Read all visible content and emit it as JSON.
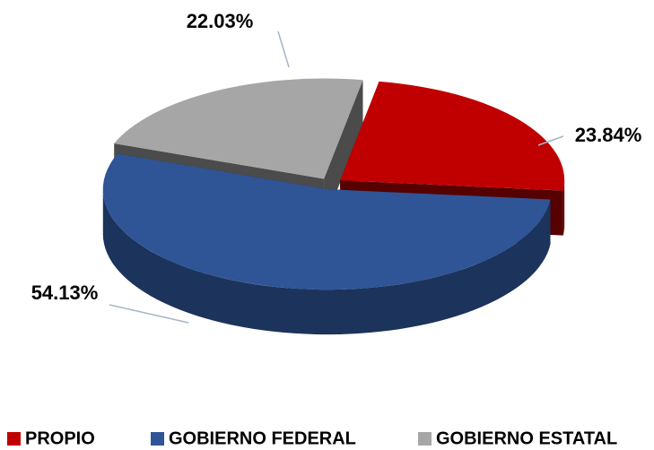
{
  "chart_data": {
    "type": "pie",
    "categories": [
      "PROPIO",
      "GOBIERNO FEDERAL",
      "GOBIERNO ESTATAL"
    ],
    "values": [
      23.84,
      54.13,
      22.03
    ],
    "value_labels": [
      "23.84%",
      "54.13%",
      "22.03%"
    ],
    "colors": [
      "#c00000",
      "#2f5597",
      "#a6a6a6"
    ],
    "legend": "bottom"
  }
}
